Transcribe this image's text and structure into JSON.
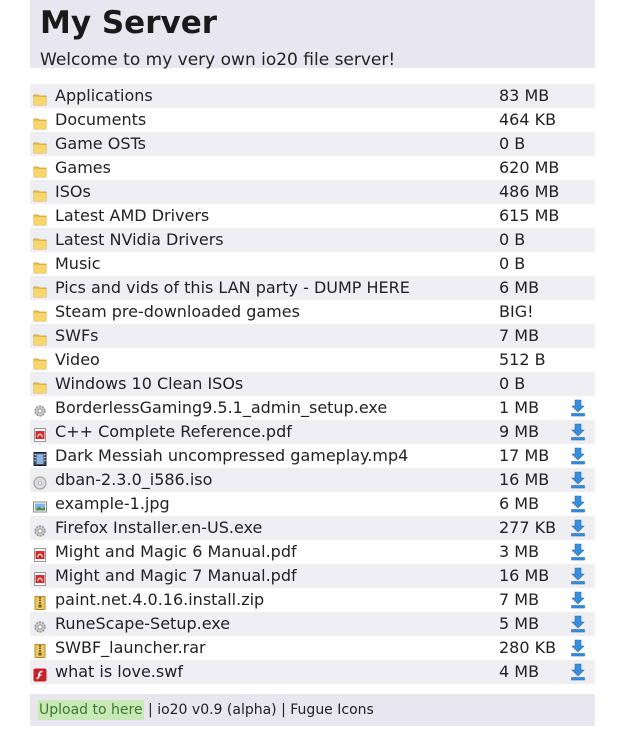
{
  "header": {
    "title": "My Server",
    "subtitle": "Welcome to my very own io20 file server!"
  },
  "entries": [
    {
      "name": "Applications",
      "size": "83 MB",
      "icon": "folder-icon",
      "kind": "folder"
    },
    {
      "name": "Documents",
      "size": "464 KB",
      "icon": "folder-icon",
      "kind": "folder"
    },
    {
      "name": "Game OSTs",
      "size": "0 B",
      "icon": "folder-icon",
      "kind": "folder"
    },
    {
      "name": "Games",
      "size": "620 MB",
      "icon": "folder-icon",
      "kind": "folder"
    },
    {
      "name": "ISOs",
      "size": "486 MB",
      "icon": "folder-icon",
      "kind": "folder"
    },
    {
      "name": "Latest AMD Drivers",
      "size": "615 MB",
      "icon": "folder-icon",
      "kind": "folder"
    },
    {
      "name": "Latest NVidia Drivers",
      "size": "0 B",
      "icon": "folder-icon",
      "kind": "folder"
    },
    {
      "name": "Music",
      "size": "0 B",
      "icon": "folder-icon",
      "kind": "folder"
    },
    {
      "name": "Pics and vids of this LAN party - DUMP HERE",
      "size": "6 MB",
      "icon": "folder-icon",
      "kind": "folder"
    },
    {
      "name": "Steam pre-downloaded games",
      "size": "BIG!",
      "icon": "folder-icon",
      "kind": "folder"
    },
    {
      "name": "SWFs",
      "size": "7 MB",
      "icon": "folder-icon",
      "kind": "folder"
    },
    {
      "name": "Video",
      "size": "512 B",
      "icon": "folder-icon",
      "kind": "folder"
    },
    {
      "name": "Windows 10 Clean ISOs",
      "size": "0 B",
      "icon": "folder-icon",
      "kind": "folder"
    },
    {
      "name": "BorderlessGaming9.5.1_admin_setup.exe",
      "size": "1 MB",
      "icon": "gear-icon",
      "kind": "file"
    },
    {
      "name": "C++ Complete Reference.pdf",
      "size": "9 MB",
      "icon": "pdf-icon",
      "kind": "file"
    },
    {
      "name": "Dark Messiah uncompressed gameplay.mp4",
      "size": "17 MB",
      "icon": "film-icon",
      "kind": "file"
    },
    {
      "name": "dban-2.3.0_i586.iso",
      "size": "16 MB",
      "icon": "disc-icon",
      "kind": "file"
    },
    {
      "name": "example-1.jpg",
      "size": "6 MB",
      "icon": "image-icon",
      "kind": "file"
    },
    {
      "name": "Firefox Installer.en-US.exe",
      "size": "277 KB",
      "icon": "gear-icon",
      "kind": "file"
    },
    {
      "name": "Might and Magic 6 Manual.pdf",
      "size": "3 MB",
      "icon": "pdf-icon",
      "kind": "file"
    },
    {
      "name": "Might and Magic 7 Manual.pdf",
      "size": "16 MB",
      "icon": "pdf-icon",
      "kind": "file"
    },
    {
      "name": "paint.net.4.0.16.install.zip",
      "size": "7 MB",
      "icon": "zip-icon",
      "kind": "file"
    },
    {
      "name": "RuneScape-Setup.exe",
      "size": "5 MB",
      "icon": "gear-icon",
      "kind": "file"
    },
    {
      "name": "SWBF_launcher.rar",
      "size": "280 KB",
      "icon": "zip-icon",
      "kind": "file"
    },
    {
      "name": "what is love.swf",
      "size": "4 MB",
      "icon": "flash-icon",
      "kind": "file"
    }
  ],
  "download_icon": "download-arrow-icon",
  "footer": {
    "upload_label": "Upload to here",
    "sep1": " | ",
    "version": "io20 v0.9 (alpha)",
    "sep2": " | ",
    "credit": "Fugue Icons"
  },
  "colors": {
    "header_bg": "#e8e6ee",
    "row_alt_bg": "#efeef3",
    "folder": "#f0c24a",
    "download": "#3a8fd8",
    "upload_bg": "#c9e8b8",
    "upload_text": "#3a7a2a"
  }
}
